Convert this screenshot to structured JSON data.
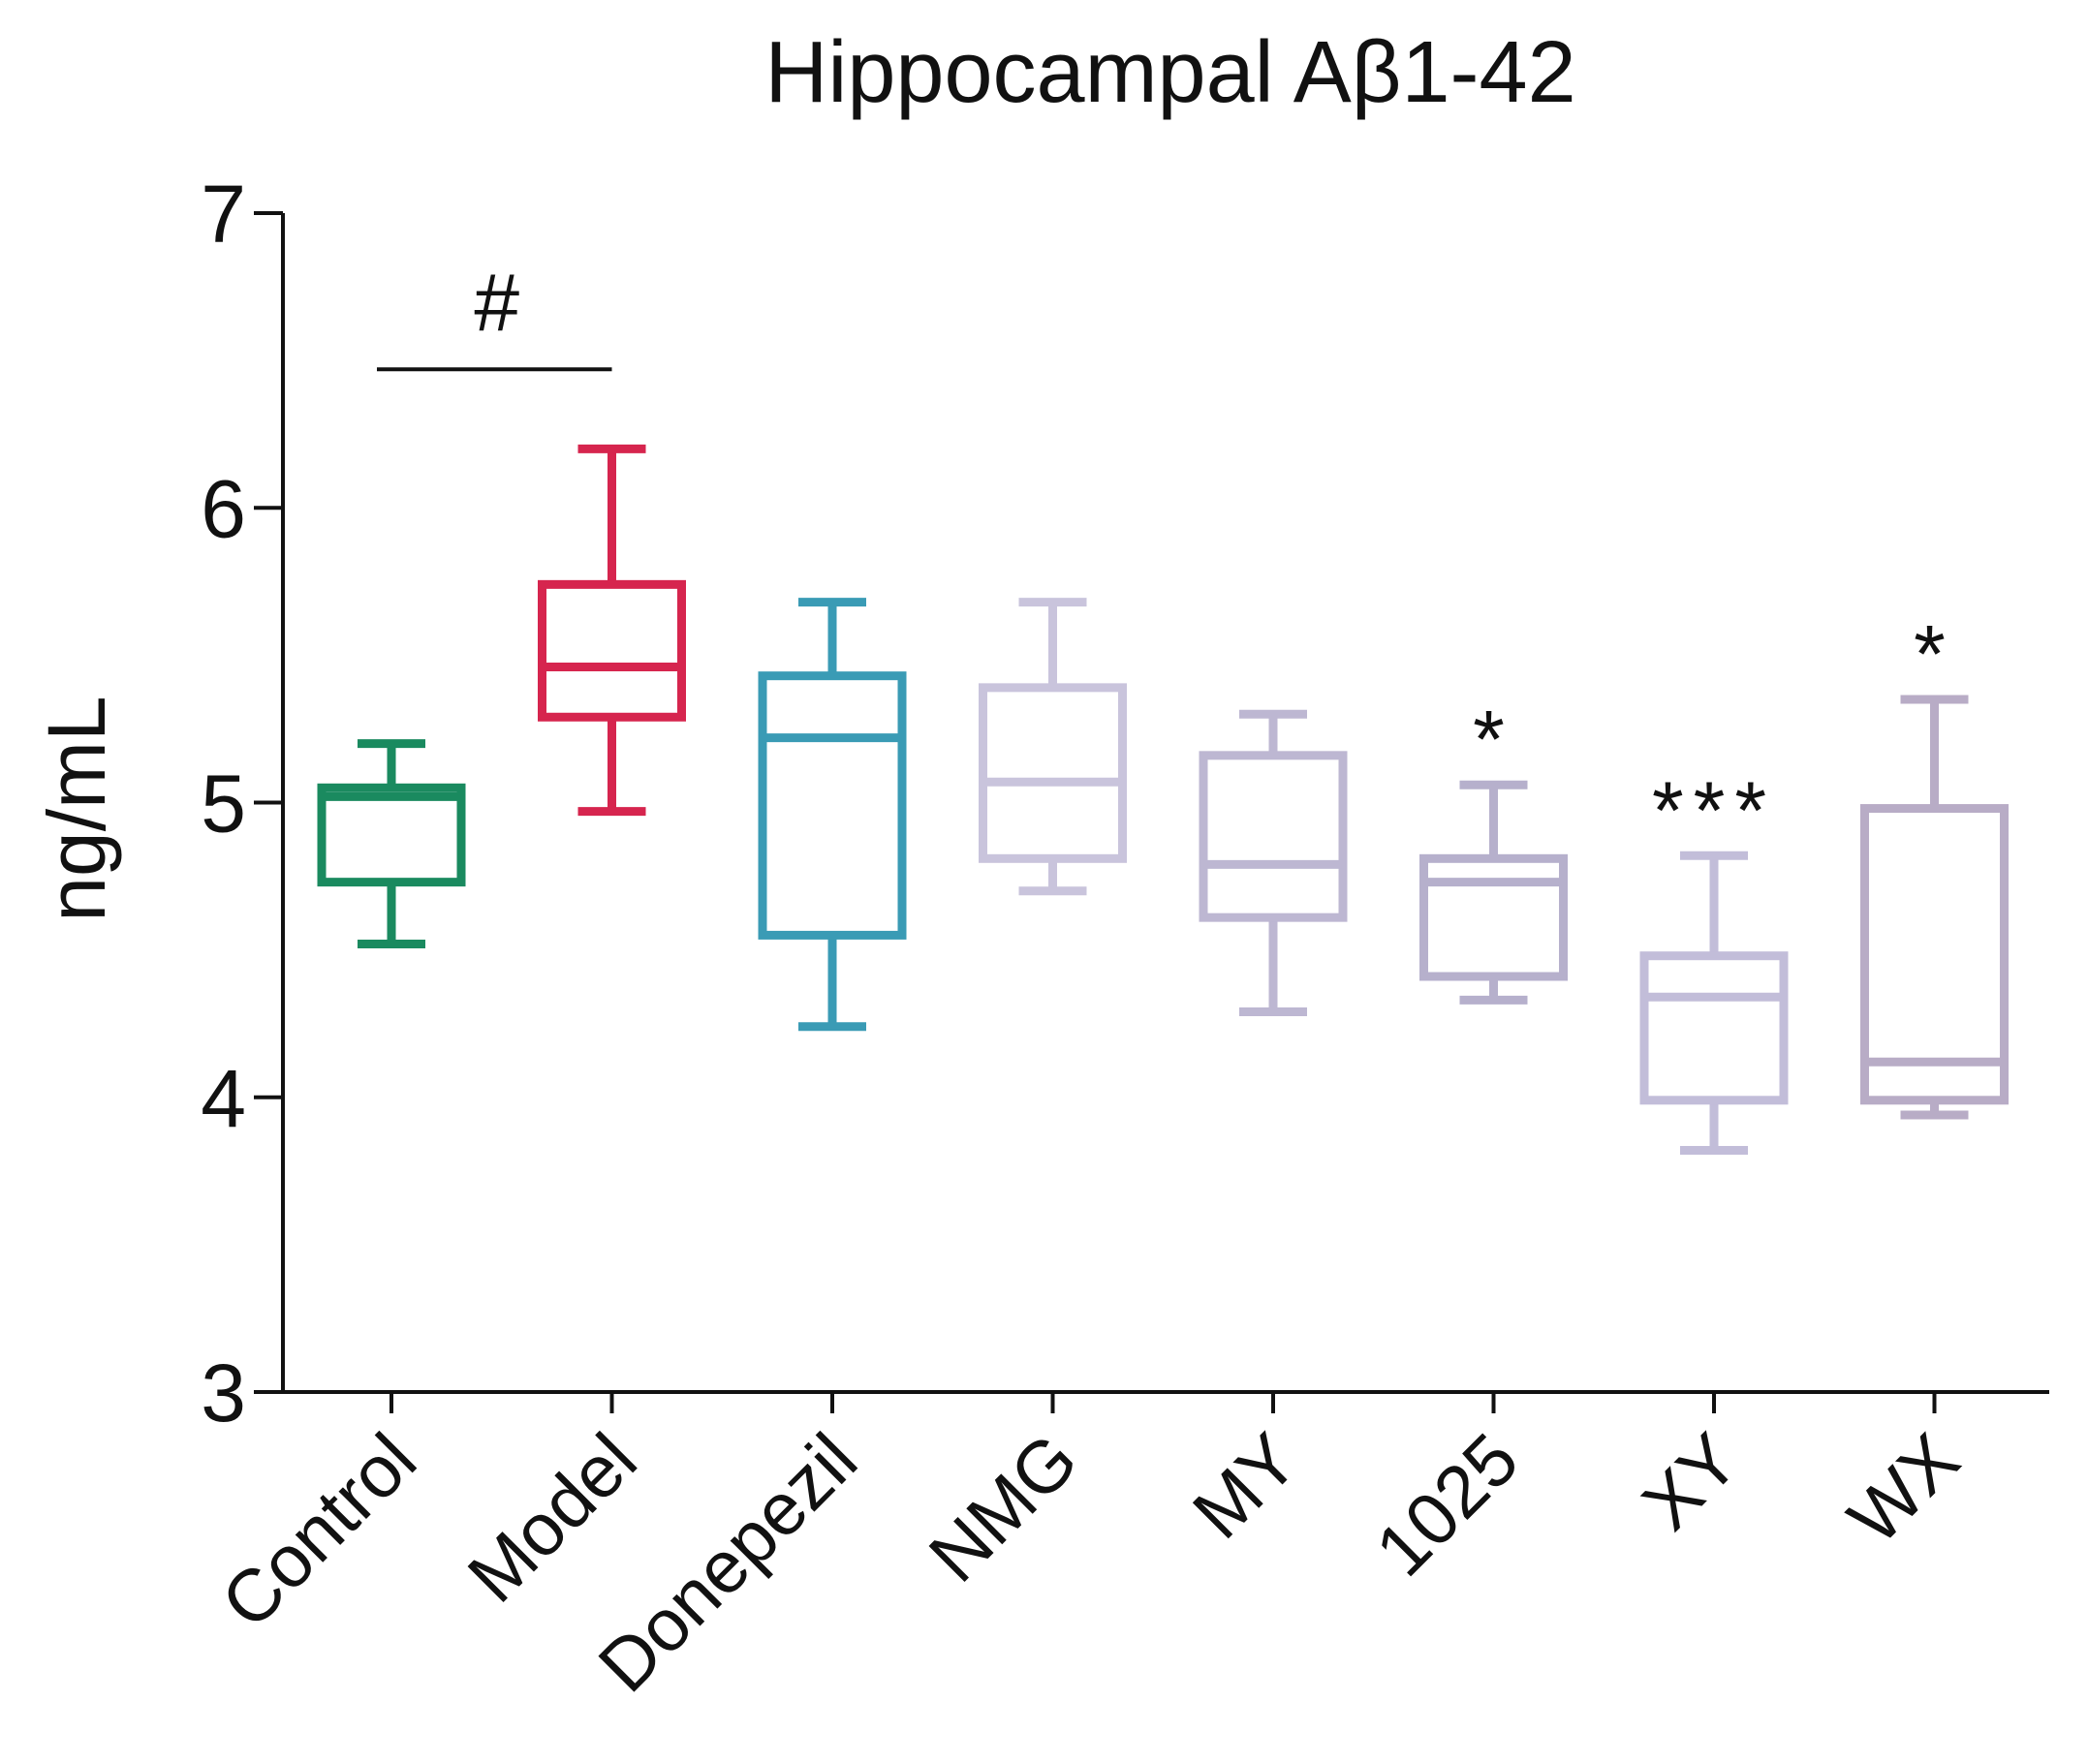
{
  "chart_data": {
    "type": "box",
    "title": "Hippocampal Aβ1-42",
    "xlabel": "",
    "ylabel": "ng/mL",
    "ylim": [
      3,
      7
    ],
    "yticks": [
      "3",
      "4",
      "5",
      "6",
      "7"
    ],
    "grid": false,
    "legend": "none",
    "categories": [
      "Control",
      "Model",
      "Donepezil",
      "NMG",
      "MY",
      "1025",
      "XY",
      "WX"
    ],
    "boxes": [
      {
        "category": "Control",
        "min": 4.52,
        "q1": 4.73,
        "median": 5.02,
        "q3": 5.05,
        "max": 5.2,
        "color": "#1a8a5f",
        "annotation": ""
      },
      {
        "category": "Model",
        "min": 4.97,
        "q1": 5.29,
        "median": 5.46,
        "q3": 5.74,
        "max": 6.2,
        "color": "#d6254e",
        "annotation": ""
      },
      {
        "category": "Donepezil",
        "min": 4.24,
        "q1": 4.55,
        "median": 5.22,
        "q3": 5.43,
        "max": 5.68,
        "color": "#3a9bb5",
        "annotation": ""
      },
      {
        "category": "NMG",
        "min": 4.7,
        "q1": 4.81,
        "median": 5.07,
        "q3": 5.39,
        "max": 5.68,
        "color": "#c9c4dc",
        "annotation": ""
      },
      {
        "category": "MY",
        "min": 4.29,
        "q1": 4.61,
        "median": 4.79,
        "q3": 5.16,
        "max": 5.3,
        "color": "#bdb7d2",
        "annotation": ""
      },
      {
        "category": "1025",
        "min": 4.33,
        "q1": 4.41,
        "median": 4.73,
        "q3": 4.81,
        "max": 5.06,
        "color": "#b6b0cc",
        "annotation": "*"
      },
      {
        "category": "XY",
        "min": 3.82,
        "q1": 3.99,
        "median": 4.34,
        "q3": 4.48,
        "max": 4.82,
        "color": "#c2bdd9",
        "annotation": "***"
      },
      {
        "category": "WX",
        "min": 3.94,
        "q1": 3.99,
        "median": 4.12,
        "q3": 4.98,
        "max": 5.35,
        "color": "#b8acc6",
        "annotation": "*"
      }
    ],
    "comparison": {
      "from": "Control",
      "to": "Model",
      "label": "#",
      "y": 6.47
    }
  }
}
